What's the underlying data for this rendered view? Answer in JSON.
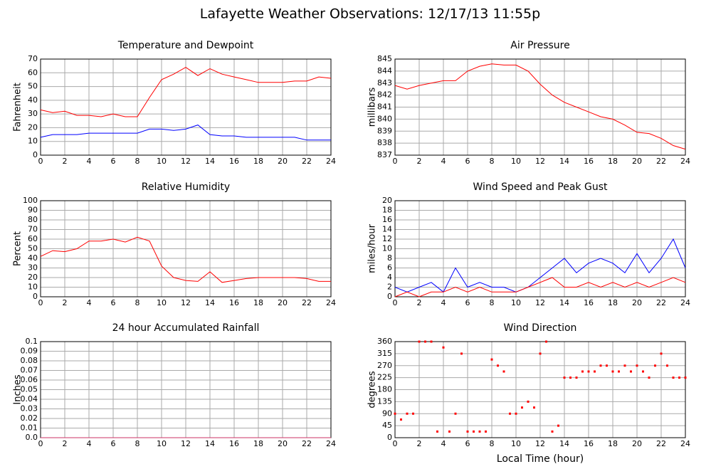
{
  "title": "Lafayette Weather Observations: 12/17/13 11:55p",
  "chart_data": [
    {
      "type": "line",
      "title": "Temperature and Dewpoint",
      "ylabel": "Fahrenheit",
      "grid": true,
      "x": [
        0,
        1,
        2,
        3,
        4,
        5,
        6,
        7,
        8,
        9,
        10,
        11,
        12,
        13,
        14,
        15,
        16,
        17,
        18,
        19,
        20,
        21,
        22,
        23,
        24
      ],
      "xlim": [
        0,
        24
      ],
      "xticks": [
        0,
        2,
        4,
        6,
        8,
        10,
        12,
        14,
        16,
        18,
        20,
        22,
        24
      ],
      "ylim": [
        0,
        70
      ],
      "yticks": [
        0,
        10,
        20,
        30,
        40,
        50,
        60,
        70
      ],
      "series": [
        {
          "name": "Temperature",
          "color": "#ff0000",
          "values": [
            33,
            31,
            32,
            29,
            29,
            28,
            30,
            28,
            28,
            42,
            55,
            59,
            64,
            58,
            63,
            59,
            57,
            55,
            53,
            53,
            53,
            54,
            54,
            57,
            56
          ]
        },
        {
          "name": "Dewpoint",
          "color": "#0000ff",
          "values": [
            13,
            15,
            15,
            15,
            16,
            16,
            16,
            16,
            16,
            19,
            19,
            18,
            19,
            22,
            15,
            14,
            14,
            13,
            13,
            13,
            13,
            13,
            11,
            11,
            11
          ]
        }
      ]
    },
    {
      "type": "line",
      "title": "Air Pressure",
      "ylabel": "millibars",
      "grid": true,
      "x": [
        0,
        1,
        2,
        3,
        4,
        5,
        6,
        7,
        8,
        9,
        10,
        11,
        12,
        13,
        14,
        15,
        16,
        17,
        18,
        19,
        20,
        21,
        22,
        23,
        24
      ],
      "xlim": [
        0,
        24
      ],
      "xticks": [
        0,
        2,
        4,
        6,
        8,
        10,
        12,
        14,
        16,
        18,
        20,
        22,
        24
      ],
      "ylim": [
        837,
        845
      ],
      "yticks": [
        837,
        838,
        839,
        840,
        841,
        842,
        843,
        844,
        845
      ],
      "series": [
        {
          "name": "Pressure",
          "color": "#ff0000",
          "values": [
            842.8,
            842.5,
            842.8,
            843.0,
            843.2,
            843.2,
            844.0,
            844.4,
            844.6,
            844.5,
            844.5,
            844.0,
            842.9,
            842.0,
            841.4,
            841.0,
            840.6,
            840.2,
            840.0,
            839.5,
            838.9,
            838.8,
            838.4,
            837.8,
            837.5
          ]
        }
      ]
    },
    {
      "type": "line",
      "title": "Relative Humidity",
      "ylabel": "Percent",
      "grid": true,
      "x": [
        0,
        1,
        2,
        3,
        4,
        5,
        6,
        7,
        8,
        9,
        10,
        11,
        12,
        13,
        14,
        15,
        16,
        17,
        18,
        19,
        20,
        21,
        22,
        23,
        24
      ],
      "xlim": [
        0,
        24
      ],
      "xticks": [
        0,
        2,
        4,
        6,
        8,
        10,
        12,
        14,
        16,
        18,
        20,
        22,
        24
      ],
      "ylim": [
        0,
        100
      ],
      "yticks": [
        0,
        10,
        20,
        30,
        40,
        50,
        60,
        70,
        80,
        90,
        100
      ],
      "series": [
        {
          "name": "Humidity",
          "color": "#ff0000",
          "values": [
            42,
            48,
            47,
            50,
            58,
            58,
            60,
            57,
            62,
            58,
            32,
            20,
            17,
            16,
            26,
            15,
            17,
            19,
            20,
            20,
            20,
            20,
            19,
            16,
            16
          ]
        }
      ]
    },
    {
      "type": "line",
      "title": "Wind Speed and Peak Gust",
      "ylabel": "miles/hour",
      "grid": true,
      "x": [
        0,
        1,
        2,
        3,
        4,
        5,
        6,
        7,
        8,
        9,
        10,
        11,
        12,
        13,
        14,
        15,
        16,
        17,
        18,
        19,
        20,
        21,
        22,
        23,
        24
      ],
      "xlim": [
        0,
        24
      ],
      "xticks": [
        0,
        2,
        4,
        6,
        8,
        10,
        12,
        14,
        16,
        18,
        20,
        22,
        24
      ],
      "ylim": [
        0,
        20
      ],
      "yticks": [
        0,
        2,
        4,
        6,
        8,
        10,
        12,
        14,
        16,
        18,
        20
      ],
      "series": [
        {
          "name": "Wind Speed",
          "color": "#0000ff",
          "values": [
            2,
            1,
            2,
            3,
            1,
            6,
            2,
            3,
            2,
            2,
            1,
            2,
            4,
            6,
            8,
            5,
            7,
            8,
            7,
            5,
            9,
            5,
            8,
            12,
            6
          ]
        },
        {
          "name": "Peak Gust",
          "color": "#ff0000",
          "values": [
            0,
            1,
            0,
            1,
            1,
            2,
            1,
            2,
            1,
            1,
            1,
            2,
            3,
            4,
            2,
            2,
            3,
            2,
            3,
            2,
            3,
            2,
            3,
            4,
            3
          ]
        }
      ]
    },
    {
      "type": "line",
      "title": "24 hour Accumulated Rainfall",
      "ylabel": "Inches",
      "grid": true,
      "x": [
        0,
        1,
        2,
        3,
        4,
        5,
        6,
        7,
        8,
        9,
        10,
        11,
        12,
        13,
        14,
        15,
        16,
        17,
        18,
        19,
        20,
        21,
        22,
        23,
        24
      ],
      "xlim": [
        0,
        24
      ],
      "xticks": [
        0,
        2,
        4,
        6,
        8,
        10,
        12,
        14,
        16,
        18,
        20,
        22,
        24
      ],
      "ylim": [
        0,
        0.1
      ],
      "yticks": [
        {
          "value": 0,
          "label": "0.0"
        },
        0.01,
        0.02,
        0.03,
        0.04,
        0.05,
        0.06,
        0.07,
        0.08,
        0.09,
        {
          "value": 0.1,
          "label": "0.1"
        }
      ],
      "series": [
        {
          "name": "Rainfall",
          "color": "#cc3366",
          "values": [
            0,
            0,
            0,
            0,
            0,
            0,
            0,
            0,
            0,
            0,
            0,
            0,
            0,
            0,
            0,
            0,
            0,
            0,
            0,
            0,
            0,
            0,
            0,
            0,
            0
          ]
        }
      ]
    },
    {
      "type": "scatter",
      "title": "Wind Direction",
      "ylabel": "degrees",
      "xlabel": "Local Time (hour)",
      "grid": true,
      "color": "#ff0000",
      "x": [
        0,
        0.5,
        1,
        1.5,
        2,
        2.5,
        3,
        3.5,
        4,
        4.5,
        5,
        5.5,
        6,
        6.5,
        7,
        7.5,
        8,
        8.5,
        9,
        9.5,
        10,
        10.5,
        11,
        11.5,
        12,
        12.5,
        13,
        13.5,
        14,
        14.5,
        15,
        15.5,
        16,
        16.5,
        17,
        17.5,
        18,
        18.5,
        19,
        19.5,
        20,
        20.5,
        21,
        21.5,
        22,
        22.5,
        23,
        23.5,
        24
      ],
      "values": [
        90,
        68,
        90,
        90,
        360,
        360,
        360,
        23,
        338,
        23,
        90,
        315,
        23,
        23,
        23,
        23,
        293,
        270,
        248,
        90,
        90,
        113,
        135,
        113,
        315,
        360,
        23,
        45,
        225,
        225,
        225,
        248,
        248,
        248,
        270,
        270,
        248,
        248,
        270,
        248,
        270,
        248,
        225,
        270,
        315,
        270,
        225,
        225,
        225
      ],
      "xlim": [
        0,
        24
      ],
      "xticks": [
        0,
        2,
        4,
        6,
        8,
        10,
        12,
        14,
        16,
        18,
        20,
        22,
        24
      ],
      "ylim": [
        0,
        360
      ],
      "yticks": [
        0,
        45,
        90,
        135,
        180,
        225,
        270,
        315,
        360
      ]
    }
  ]
}
